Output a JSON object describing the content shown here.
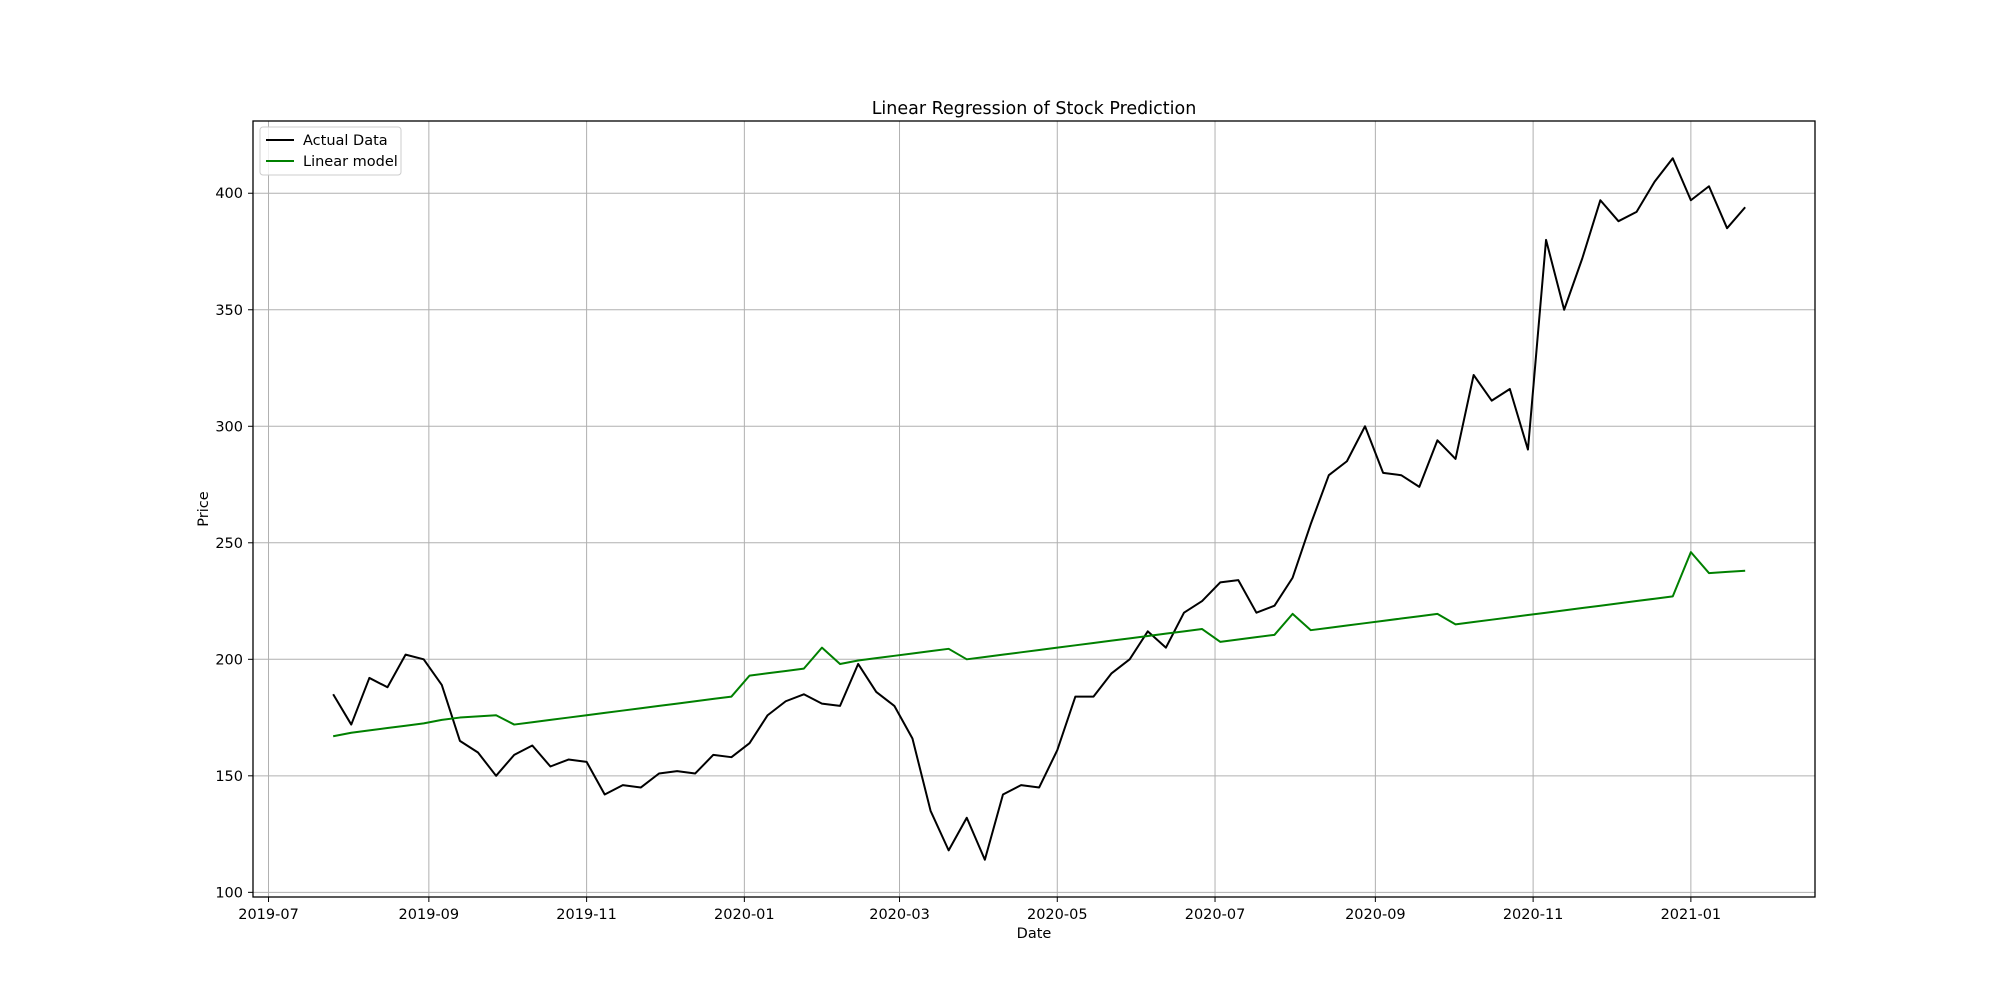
{
  "chart_data": {
    "type": "line",
    "title": "Linear Regression of Stock Prediction",
    "xlabel": "Date",
    "ylabel": "Price",
    "x_tick_labels": [
      "2019-07",
      "2019-09",
      "2019-11",
      "2020-01",
      "2020-03",
      "2020-05",
      "2020-07",
      "2020-09",
      "2020-11",
      "2021-01"
    ],
    "x_tick_dates": [
      "2019-07-01",
      "2019-09-01",
      "2019-11-01",
      "2020-01-01",
      "2020-03-01",
      "2020-05-01",
      "2020-07-01",
      "2020-09-01",
      "2020-11-01",
      "2021-01-01"
    ],
    "y_ticks": [
      100,
      150,
      200,
      250,
      300,
      350,
      400
    ],
    "xlim": [
      "2019-06-25",
      "2021-02-18"
    ],
    "ylim": [
      98,
      431
    ],
    "grid": true,
    "legend_position": "top-left",
    "x": [
      "2019-07-26",
      "2019-08-02",
      "2019-08-09",
      "2019-08-16",
      "2019-08-23",
      "2019-08-30",
      "2019-09-06",
      "2019-09-13",
      "2019-09-20",
      "2019-09-27",
      "2019-10-04",
      "2019-10-11",
      "2019-10-18",
      "2019-10-25",
      "2019-11-01",
      "2019-11-08",
      "2019-11-15",
      "2019-11-22",
      "2019-11-29",
      "2019-12-06",
      "2019-12-13",
      "2019-12-20",
      "2019-12-27",
      "2020-01-03",
      "2020-01-10",
      "2020-01-17",
      "2020-01-24",
      "2020-01-31",
      "2020-02-07",
      "2020-02-14",
      "2020-02-21",
      "2020-02-28",
      "2020-03-06",
      "2020-03-13",
      "2020-03-20",
      "2020-03-27",
      "2020-04-03",
      "2020-04-10",
      "2020-04-17",
      "2020-04-24",
      "2020-05-01",
      "2020-05-08",
      "2020-05-15",
      "2020-05-22",
      "2020-05-29",
      "2020-06-05",
      "2020-06-12",
      "2020-06-19",
      "2020-06-26",
      "2020-07-03",
      "2020-07-10",
      "2020-07-17",
      "2020-07-24",
      "2020-07-31",
      "2020-08-07",
      "2020-08-14",
      "2020-08-21",
      "2020-08-28",
      "2020-09-04",
      "2020-09-11",
      "2020-09-18",
      "2020-09-25",
      "2020-10-02",
      "2020-10-09",
      "2020-10-16",
      "2020-10-23",
      "2020-10-30",
      "2020-11-06",
      "2020-11-13",
      "2020-11-20",
      "2020-11-27",
      "2020-12-04",
      "2020-12-11",
      "2020-12-18",
      "2020-12-25",
      "2021-01-01",
      "2021-01-08",
      "2021-01-15",
      "2021-01-22"
    ],
    "series": [
      {
        "name": "Actual Data",
        "color": "#000000",
        "values": [
          185,
          172,
          192,
          188,
          202,
          200,
          189,
          165,
          160,
          150,
          159,
          163,
          154,
          157,
          156,
          142,
          146,
          145,
          151,
          152,
          151,
          159,
          158,
          164,
          176,
          182,
          185,
          181,
          180,
          198,
          186,
          180,
          166,
          135,
          118,
          132,
          114,
          142,
          146,
          145,
          161,
          184,
          184,
          194,
          200,
          212,
          205,
          220,
          225,
          233,
          234,
          220,
          223,
          235,
          258,
          279,
          285,
          300,
          280,
          279,
          274,
          294,
          286,
          322,
          311,
          316,
          290,
          380,
          350,
          372,
          397,
          388,
          392,
          405,
          415,
          397,
          403,
          385,
          394
        ]
      },
      {
        "name": "Linear model",
        "color": "#008000",
        "values": [
          167,
          168.5,
          169.5,
          170.5,
          171.5,
          172.5,
          174,
          175,
          175.5,
          176,
          172,
          173,
          174,
          175,
          176,
          177,
          178,
          179,
          180,
          181,
          182,
          183,
          184,
          193,
          194,
          195,
          196,
          205,
          198,
          199.5,
          200.5,
          201.5,
          202.5,
          203.5,
          204.5,
          200,
          201,
          202,
          203,
          204,
          205,
          206,
          207,
          208,
          209,
          210,
          211,
          212,
          213,
          207.5,
          208.5,
          209.5,
          210.5,
          219.5,
          212.5,
          213.5,
          214.5,
          215.5,
          216.5,
          217.5,
          218.5,
          219.5,
          215,
          216,
          217,
          218,
          219,
          220,
          221,
          222,
          223,
          224,
          225,
          226,
          227,
          246,
          237,
          237.5,
          238
        ]
      }
    ]
  }
}
